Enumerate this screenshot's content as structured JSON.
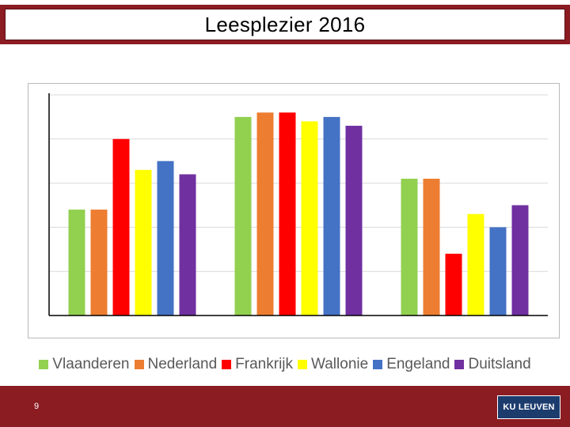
{
  "slide": {
    "title": "Leesplezier 2016",
    "page_number": "9",
    "logo_text": "KU LEUVEN"
  },
  "colors": {
    "brand": "#8b1c22",
    "logo_bg": "#1d3c6e",
    "gridline": "#d9d9d9",
    "axis": "#000000"
  },
  "chart_data": {
    "type": "bar",
    "title": "",
    "xlabel": "",
    "ylabel": "",
    "categories": [
      "",
      "",
      ""
    ],
    "ylim": [
      0,
      50
    ],
    "grid": true,
    "legend_position": "bottom",
    "series": [
      {
        "name": "Vlaanderen",
        "color": "#92d050",
        "values": [
          24,
          45,
          31
        ]
      },
      {
        "name": "Nederland",
        "color": "#ed7d31",
        "values": [
          24,
          46,
          31
        ]
      },
      {
        "name": "Frankrijk",
        "color": "#ff0000",
        "values": [
          40,
          46,
          14
        ]
      },
      {
        "name": "Wallonie",
        "color": "#ffff00",
        "values": [
          33,
          44,
          23
        ]
      },
      {
        "name": "Engeland",
        "color": "#4472c4",
        "values": [
          35,
          45,
          20
        ]
      },
      {
        "name": "Duitsland",
        "color": "#7030a0",
        "values": [
          32,
          43,
          25
        ]
      }
    ]
  }
}
